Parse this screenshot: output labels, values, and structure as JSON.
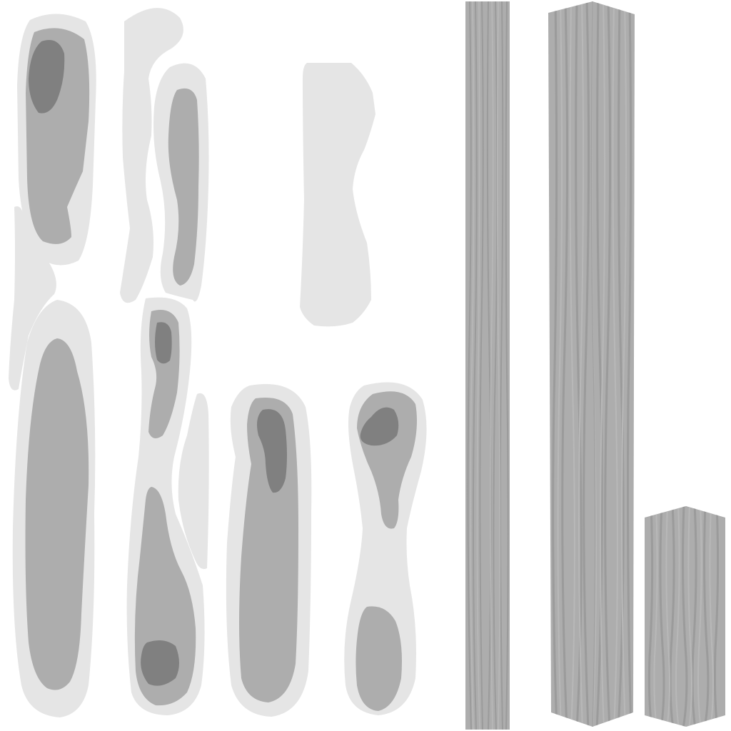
{
  "image": {
    "kind": "grayscale texture atlas",
    "background_color": "#ffffff"
  },
  "palette": {
    "outer_halo": "#e5e5e5",
    "mid_gray": "#adadad",
    "dark_core": "#808080",
    "wood_base": "#adadad",
    "wood_grain_dark": "#9b9b9b",
    "wood_grain_light": "#b8b8b8"
  },
  "regions": {
    "knot_islands": 8,
    "wood_strips": 3
  }
}
